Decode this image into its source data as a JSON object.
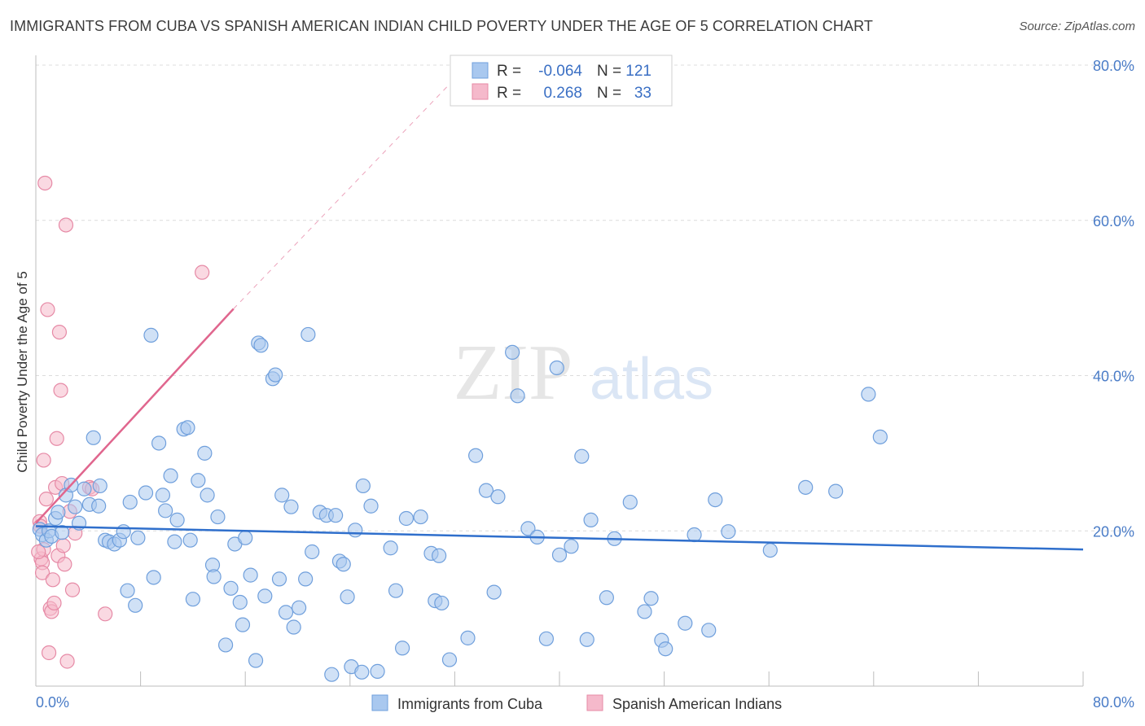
{
  "title": "IMMIGRANTS FROM CUBA VS SPANISH AMERICAN INDIAN CHILD POVERTY UNDER THE AGE OF 5 CORRELATION CHART",
  "source": "Source: ZipAtlas.com",
  "watermark": {
    "zip": "ZIP",
    "atlas": "atlas"
  },
  "colors": {
    "blue_fill": "#a9c8ef",
    "blue_stroke": "#6f9fdc",
    "blue_line": "#2f6fcc",
    "pink_fill": "#f5b9cb",
    "pink_stroke": "#e68aa6",
    "pink_line": "#e0668e",
    "grid": "#dcdcdc",
    "axis_label": "#4a7cc7"
  },
  "legend": {
    "row1": {
      "r_label": "R =",
      "r_value": "-0.064",
      "n_label": "N =",
      "n_value": "121"
    },
    "row2": {
      "r_label": "R =",
      "r_value": "0.268",
      "n_label": "N =",
      "n_value": "33"
    }
  },
  "chart_data": {
    "type": "scatter",
    "title": "IMMIGRANTS FROM CUBA VS SPANISH AMERICAN INDIAN CHILD POVERTY UNDER THE AGE OF 5 CORRELATION CHART",
    "xlabel": "",
    "ylabel": "Child Poverty Under the Age of 5",
    "xlim": [
      0,
      80
    ],
    "ylim": [
      0,
      80
    ],
    "x_tick_labels": [
      "0.0%",
      "80.0%"
    ],
    "y_tick_labels": [
      "20.0%",
      "40.0%",
      "60.0%",
      "80.0%"
    ],
    "y_ticks": [
      20,
      40,
      60,
      80
    ],
    "grid": true,
    "legend_position": "top-center",
    "series": [
      {
        "name": "Immigrants from Cuba",
        "color": "#a9c8ef",
        "trend": {
          "x": [
            0,
            80
          ],
          "y": [
            20.6,
            17.6
          ],
          "style": "solid"
        },
        "points": [
          [
            0.3,
            20.2
          ],
          [
            0.5,
            19.5
          ],
          [
            0.8,
            18.8
          ],
          [
            1.0,
            20.0
          ],
          [
            1.2,
            19.3
          ],
          [
            1.5,
            21.6
          ],
          [
            1.7,
            22.4
          ],
          [
            2.0,
            19.8
          ],
          [
            2.3,
            24.6
          ],
          [
            2.7,
            25.9
          ],
          [
            3.0,
            23.1
          ],
          [
            3.3,
            21.0
          ],
          [
            3.7,
            25.4
          ],
          [
            4.1,
            23.4
          ],
          [
            4.4,
            32.0
          ],
          [
            4.8,
            23.2
          ],
          [
            4.9,
            25.8
          ],
          [
            5.3,
            18.8
          ],
          [
            5.6,
            18.6
          ],
          [
            6.0,
            18.3
          ],
          [
            6.4,
            18.8
          ],
          [
            6.7,
            19.9
          ],
          [
            7.0,
            12.3
          ],
          [
            7.2,
            23.7
          ],
          [
            7.6,
            10.4
          ],
          [
            7.8,
            19.1
          ],
          [
            8.4,
            24.9
          ],
          [
            8.8,
            45.2
          ],
          [
            9.0,
            14.0
          ],
          [
            9.4,
            31.3
          ],
          [
            9.7,
            24.6
          ],
          [
            9.9,
            22.6
          ],
          [
            10.3,
            27.1
          ],
          [
            10.6,
            18.6
          ],
          [
            10.8,
            21.4
          ],
          [
            11.3,
            33.1
          ],
          [
            11.6,
            33.3
          ],
          [
            11.8,
            18.8
          ],
          [
            12.0,
            11.2
          ],
          [
            12.4,
            26.5
          ],
          [
            12.9,
            30.0
          ],
          [
            13.1,
            24.6
          ],
          [
            13.5,
            15.6
          ],
          [
            13.6,
            14.1
          ],
          [
            13.9,
            21.8
          ],
          [
            14.5,
            5.3
          ],
          [
            14.9,
            12.6
          ],
          [
            15.2,
            18.3
          ],
          [
            15.6,
            10.8
          ],
          [
            15.8,
            7.9
          ],
          [
            16.0,
            19.1
          ],
          [
            16.4,
            14.3
          ],
          [
            16.8,
            3.3
          ],
          [
            17.0,
            44.2
          ],
          [
            17.2,
            43.9
          ],
          [
            17.5,
            11.6
          ],
          [
            18.1,
            39.6
          ],
          [
            18.3,
            40.1
          ],
          [
            18.6,
            13.8
          ],
          [
            18.8,
            24.6
          ],
          [
            19.1,
            9.5
          ],
          [
            19.5,
            23.1
          ],
          [
            19.7,
            7.6
          ],
          [
            20.1,
            10.1
          ],
          [
            20.6,
            13.8
          ],
          [
            20.8,
            45.3
          ],
          [
            21.1,
            17.3
          ],
          [
            21.7,
            22.4
          ],
          [
            22.2,
            22.0
          ],
          [
            22.6,
            1.5
          ],
          [
            22.9,
            22.0
          ],
          [
            23.2,
            16.1
          ],
          [
            23.5,
            15.7
          ],
          [
            23.8,
            11.5
          ],
          [
            24.1,
            2.5
          ],
          [
            24.4,
            20.1
          ],
          [
            24.9,
            1.8
          ],
          [
            25.0,
            25.8
          ],
          [
            25.6,
            23.2
          ],
          [
            26.1,
            1.9
          ],
          [
            27.1,
            17.8
          ],
          [
            27.5,
            12.3
          ],
          [
            28.0,
            4.9
          ],
          [
            28.3,
            21.6
          ],
          [
            29.4,
            21.8
          ],
          [
            30.2,
            17.1
          ],
          [
            30.5,
            11.0
          ],
          [
            30.8,
            16.8
          ],
          [
            31.0,
            10.7
          ],
          [
            31.6,
            3.4
          ],
          [
            33.0,
            6.2
          ],
          [
            33.6,
            29.7
          ],
          [
            34.4,
            25.2
          ],
          [
            35.0,
            12.1
          ],
          [
            35.3,
            24.4
          ],
          [
            36.4,
            43.0
          ],
          [
            36.8,
            37.4
          ],
          [
            37.6,
            20.3
          ],
          [
            38.3,
            19.2
          ],
          [
            39.0,
            6.1
          ],
          [
            39.8,
            41.0
          ],
          [
            40.0,
            16.9
          ],
          [
            40.9,
            18.0
          ],
          [
            41.7,
            29.6
          ],
          [
            42.1,
            6.0
          ],
          [
            42.4,
            21.4
          ],
          [
            43.6,
            11.4
          ],
          [
            44.2,
            19.0
          ],
          [
            45.4,
            23.7
          ],
          [
            46.5,
            9.6
          ],
          [
            47.0,
            11.3
          ],
          [
            47.8,
            5.9
          ],
          [
            48.1,
            4.8
          ],
          [
            49.6,
            8.1
          ],
          [
            50.3,
            19.5
          ],
          [
            51.4,
            7.2
          ],
          [
            51.9,
            24.0
          ],
          [
            52.9,
            19.9
          ],
          [
            56.1,
            17.5
          ],
          [
            58.8,
            25.6
          ],
          [
            61.1,
            25.1
          ],
          [
            63.6,
            37.6
          ],
          [
            64.5,
            32.1
          ]
        ]
      },
      {
        "name": "Spanish American Indians",
        "color": "#f5b9cb",
        "trend": {
          "x": [
            0,
            15.1
          ],
          "y": [
            21.0,
            48.6
          ],
          "extended_to": [
            33.0,
            80.0
          ],
          "style": "solid-then-dashed"
        },
        "points": [
          [
            0.3,
            21.2
          ],
          [
            0.4,
            16.4
          ],
          [
            0.5,
            15.9
          ],
          [
            0.5,
            14.6
          ],
          [
            0.6,
            17.6
          ],
          [
            0.6,
            29.1
          ],
          [
            0.7,
            64.8
          ],
          [
            0.8,
            24.1
          ],
          [
            0.9,
            48.5
          ],
          [
            1.0,
            4.3
          ],
          [
            1.1,
            10.0
          ],
          [
            1.2,
            9.6
          ],
          [
            1.3,
            13.7
          ],
          [
            1.4,
            10.7
          ],
          [
            1.5,
            25.6
          ],
          [
            1.6,
            31.9
          ],
          [
            1.7,
            16.8
          ],
          [
            1.8,
            45.6
          ],
          [
            1.9,
            38.1
          ],
          [
            2.0,
            26.1
          ],
          [
            2.1,
            18.1
          ],
          [
            2.2,
            15.7
          ],
          [
            2.3,
            59.4
          ],
          [
            2.4,
            3.2
          ],
          [
            2.6,
            22.5
          ],
          [
            2.8,
            12.4
          ],
          [
            3.0,
            19.7
          ],
          [
            4.1,
            25.6
          ],
          [
            4.3,
            25.4
          ],
          [
            5.3,
            9.3
          ],
          [
            12.7,
            53.3
          ],
          [
            0.2,
            17.3
          ],
          [
            0.35,
            20.6
          ]
        ]
      }
    ]
  },
  "bottom_legend": {
    "item1": "Immigrants from Cuba",
    "item2": "Spanish American Indians"
  }
}
